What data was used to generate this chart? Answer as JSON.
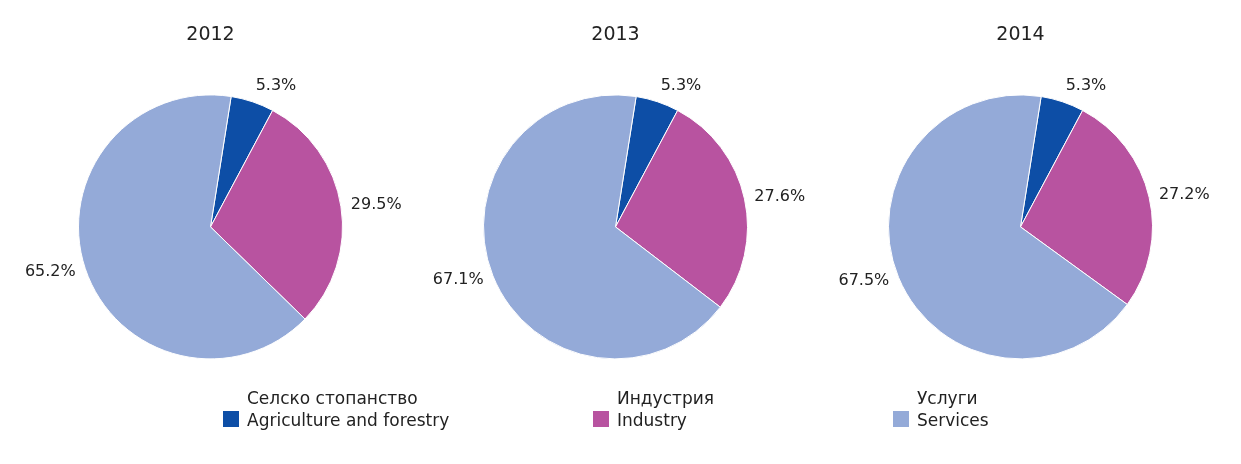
{
  "chart_data": [
    {
      "type": "pie",
      "title": "2012",
      "categories": [
        "Селско стопанство\nAgriculture and forestry",
        "Индустрия\nIndustry",
        "Услуги\nServices"
      ],
      "values": [
        5.3,
        29.5,
        65.2
      ],
      "value_labels": [
        "5.3%",
        "29.5%",
        "65.2%"
      ],
      "colors": [
        "#0d4ea6",
        "#b853a0",
        "#94aad8"
      ],
      "legend": "bottom"
    },
    {
      "type": "pie",
      "title": "2013",
      "values": [
        5.3,
        27.6,
        67.1
      ],
      "value_labels": [
        "5.3%",
        "27.6%",
        "67.1%"
      ],
      "colors": [
        "#0d4ea6",
        "#b853a0",
        "#94aad8"
      ]
    },
    {
      "type": "pie",
      "title": "2014",
      "values": [
        5.3,
        27.2,
        67.5
      ],
      "value_labels": [
        "5.3%",
        "27.2%",
        "67.5%"
      ],
      "colors": [
        "#0d4ea6",
        "#b853a0",
        "#94aad8"
      ]
    }
  ]
}
